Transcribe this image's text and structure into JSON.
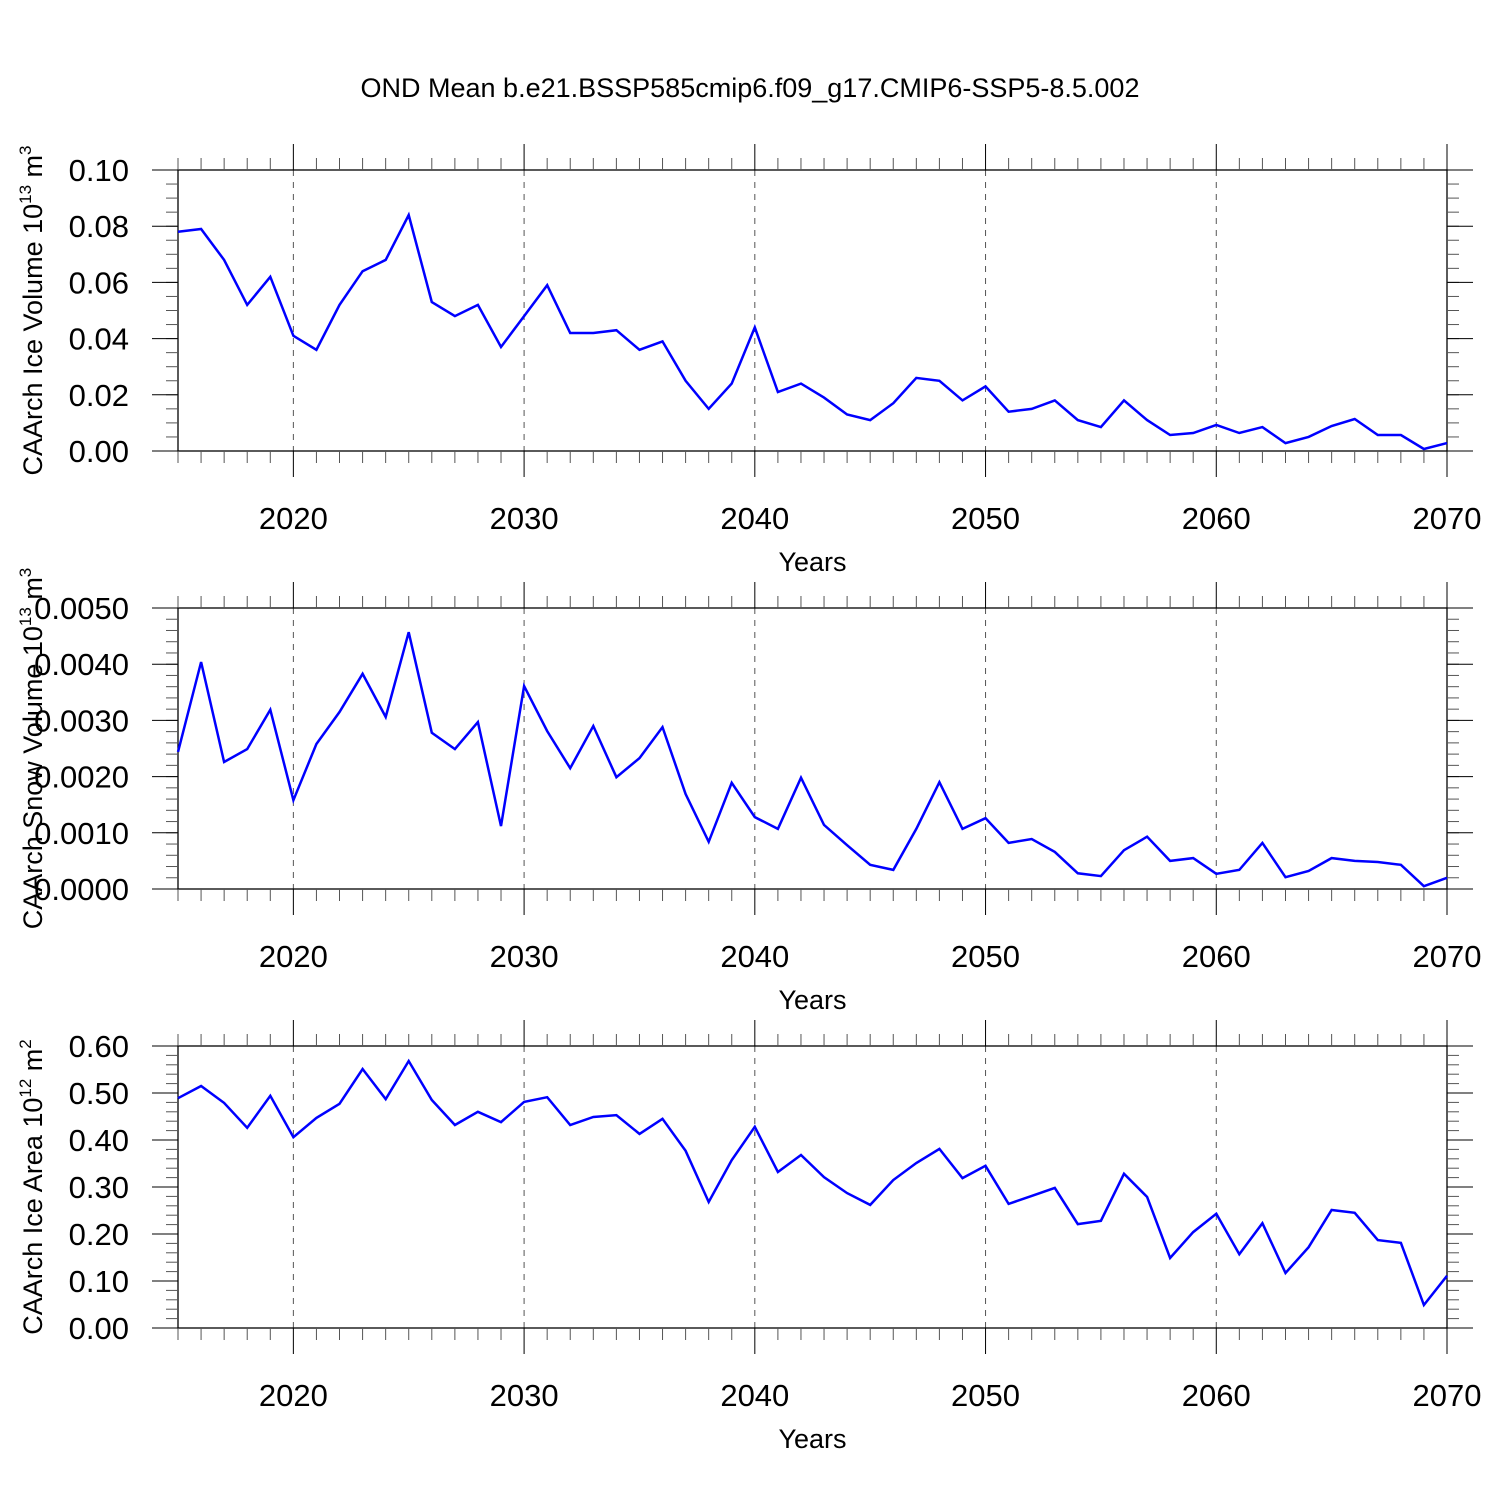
{
  "title": "OND Mean b.e21.BSSP585cmip6.f09_g17.CMIP6-SSP5-8.5.002",
  "line_color": "#0000ff",
  "chart_data": [
    {
      "type": "line",
      "ylabel": "CAArch Ice Volume 10",
      "ylabel_exp": "13",
      "ylabel_unit": " m",
      "ylabel_unit_exp": "3",
      "xlabel": "Years",
      "xlim": [
        2015,
        2070
      ],
      "ylim": [
        0,
        0.1
      ],
      "yticks": [
        "0.00",
        "0.02",
        "0.04",
        "0.06",
        "0.08",
        "0.10"
      ],
      "ytick_values": [
        0,
        0.02,
        0.04,
        0.06,
        0.08,
        0.1
      ],
      "yminor_step": 0.005,
      "xticks": [
        "2020",
        "2030",
        "2040",
        "2050",
        "2060",
        "2070"
      ],
      "grid": "dashed vertical at decades",
      "x": [
        2015,
        2016,
        2017,
        2018,
        2019,
        2020,
        2021,
        2022,
        2023,
        2024,
        2025,
        2026,
        2027,
        2028,
        2029,
        2030,
        2031,
        2032,
        2033,
        2034,
        2035,
        2036,
        2037,
        2038,
        2039,
        2040,
        2041,
        2042,
        2043,
        2044,
        2045,
        2046,
        2047,
        2048,
        2049,
        2050,
        2051,
        2052,
        2053,
        2054,
        2055,
        2056,
        2057,
        2058,
        2059,
        2060,
        2061,
        2062,
        2063,
        2064,
        2065,
        2066,
        2067,
        2068,
        2069,
        2070
      ],
      "y": [
        0.078,
        0.079,
        0.068,
        0.052,
        0.062,
        0.041,
        0.036,
        0.052,
        0.064,
        0.068,
        0.084,
        0.053,
        0.048,
        0.052,
        0.037,
        0.048,
        0.059,
        0.042,
        0.042,
        0.043,
        0.036,
        0.039,
        0.025,
        0.015,
        0.024,
        0.044,
        0.021,
        0.024,
        0.019,
        0.013,
        0.011,
        0.017,
        0.026,
        0.025,
        0.018,
        0.023,
        0.014,
        0.015,
        0.018,
        0.011,
        0.0085,
        0.018,
        0.011,
        0.0057,
        0.0064,
        0.0093,
        0.0064,
        0.0085,
        0.0028,
        0.005,
        0.0089,
        0.0114,
        0.0057,
        0.0057,
        0.0007,
        0.0028
      ]
    },
    {
      "type": "line",
      "ylabel": "CAArch Snow Volume 10",
      "ylabel_exp": "13",
      "ylabel_unit": " m",
      "ylabel_unit_exp": "3",
      "xlabel": "Years",
      "xlim": [
        2015,
        2070
      ],
      "ylim": [
        0,
        0.005
      ],
      "yticks": [
        "0.0000",
        "0.0010",
        "0.0020",
        "0.0030",
        "0.0040",
        "0.0050"
      ],
      "ytick_values": [
        0,
        0.001,
        0.002,
        0.003,
        0.004,
        0.005
      ],
      "yminor_step": 0.0002,
      "xticks": [
        "2020",
        "2030",
        "2040",
        "2050",
        "2060",
        "2070"
      ],
      "grid": "dashed vertical at decades",
      "x": [
        2015,
        2016,
        2017,
        2018,
        2019,
        2020,
        2021,
        2022,
        2023,
        2024,
        2025,
        2026,
        2027,
        2028,
        2029,
        2030,
        2031,
        2032,
        2033,
        2034,
        2035,
        2036,
        2037,
        2038,
        2039,
        2040,
        2041,
        2042,
        2043,
        2044,
        2045,
        2046,
        2047,
        2048,
        2049,
        2050,
        2051,
        2052,
        2053,
        2054,
        2055,
        2056,
        2057,
        2058,
        2059,
        2060,
        2061,
        2062,
        2063,
        2064,
        2065,
        2066,
        2067,
        2068,
        2069,
        2070
      ],
      "y": [
        0.00244,
        0.00404,
        0.00226,
        0.00249,
        0.00319,
        0.00158,
        0.00258,
        0.00315,
        0.00383,
        0.00306,
        0.00457,
        0.00278,
        0.00249,
        0.00297,
        0.00112,
        0.00361,
        0.00281,
        0.00215,
        0.0029,
        0.00199,
        0.00233,
        0.00288,
        0.00169,
        0.00084,
        0.00189,
        0.00128,
        0.00107,
        0.00198,
        0.00114,
        0.00078,
        0.00043,
        0.00034,
        0.00107,
        0.0019,
        0.00107,
        0.00126,
        0.00082,
        0.00089,
        0.00066,
        0.00028,
        0.00023,
        0.00069,
        0.00093,
        0.0005,
        0.00055,
        0.00027,
        0.00034,
        0.00082,
        0.00021,
        0.00032,
        0.00055,
        0.0005,
        0.00048,
        0.00043,
        5e-05,
        0.0002
      ]
    },
    {
      "type": "line",
      "ylabel": "CAArch Ice Area 10",
      "ylabel_exp": "12",
      "ylabel_unit": " m",
      "ylabel_unit_exp": "2",
      "xlabel": "Years",
      "xlim": [
        2015,
        2070
      ],
      "ylim": [
        0,
        0.6
      ],
      "yticks": [
        "0.00",
        "0.10",
        "0.20",
        "0.30",
        "0.40",
        "0.50",
        "0.60"
      ],
      "ytick_values": [
        0,
        0.1,
        0.2,
        0.3,
        0.4,
        0.5,
        0.6
      ],
      "yminor_step": 0.02,
      "xticks": [
        "2020",
        "2030",
        "2040",
        "2050",
        "2060",
        "2070"
      ],
      "grid": "dashed vertical at decades",
      "x": [
        2015,
        2016,
        2017,
        2018,
        2019,
        2020,
        2021,
        2022,
        2023,
        2024,
        2025,
        2026,
        2027,
        2028,
        2029,
        2030,
        2031,
        2032,
        2033,
        2034,
        2035,
        2036,
        2037,
        2038,
        2039,
        2040,
        2041,
        2042,
        2043,
        2044,
        2045,
        2046,
        2047,
        2048,
        2049,
        2050,
        2051,
        2052,
        2053,
        2054,
        2055,
        2056,
        2057,
        2058,
        2059,
        2060,
        2061,
        2062,
        2063,
        2064,
        2065,
        2066,
        2067,
        2068,
        2069,
        2070
      ],
      "y": [
        0.489,
        0.515,
        0.479,
        0.426,
        0.494,
        0.406,
        0.447,
        0.477,
        0.551,
        0.487,
        0.568,
        0.485,
        0.432,
        0.46,
        0.438,
        0.481,
        0.491,
        0.432,
        0.449,
        0.453,
        0.413,
        0.445,
        0.377,
        0.268,
        0.357,
        0.428,
        0.332,
        0.368,
        0.321,
        0.287,
        0.262,
        0.315,
        0.351,
        0.381,
        0.319,
        0.345,
        0.264,
        0.281,
        0.298,
        0.221,
        0.228,
        0.328,
        0.279,
        0.149,
        0.204,
        0.243,
        0.157,
        0.223,
        0.117,
        0.172,
        0.251,
        0.245,
        0.187,
        0.181,
        0.049,
        0.111
      ]
    }
  ]
}
